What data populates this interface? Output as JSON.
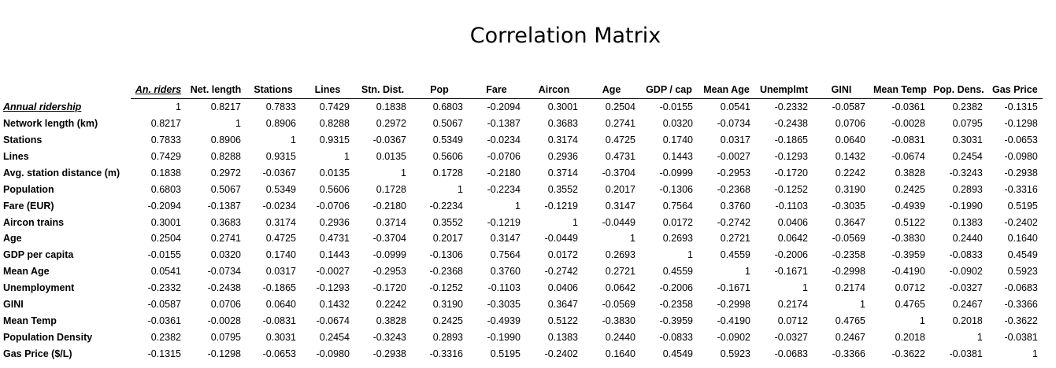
{
  "title": "Correlation Matrix",
  "col_headers": [
    "An. riders",
    "Net. length",
    "Stations",
    "Lines",
    "Stn. Dist.",
    "Pop",
    "Fare",
    "Aircon",
    "Age",
    "GDP / cap",
    "Mean Age",
    "Unemplmt",
    "GINI",
    "Mean Temp",
    "Pop. Dens.",
    "Gas Price"
  ],
  "highlight_col": 0,
  "highlight_row": 0,
  "rows": [
    {
      "label": "Annual ridership",
      "values": [
        "1",
        "0.8217",
        "0.7833",
        "0.7429",
        "0.1838",
        "0.6803",
        "-0.2094",
        "0.3001",
        "0.2504",
        "-0.0155",
        "0.0541",
        "-0.2332",
        "-0.0587",
        "-0.0361",
        "0.2382",
        "-0.1315"
      ]
    },
    {
      "label": "Network length (km)",
      "values": [
        "0.8217",
        "1",
        "0.8906",
        "0.8288",
        "0.2972",
        "0.5067",
        "-0.1387",
        "0.3683",
        "0.2741",
        "0.0320",
        "-0.0734",
        "-0.2438",
        "0.0706",
        "-0.0028",
        "0.0795",
        "-0.1298"
      ]
    },
    {
      "label": "Stations",
      "values": [
        "0.7833",
        "0.8906",
        "1",
        "0.9315",
        "-0.0367",
        "0.5349",
        "-0.0234",
        "0.3174",
        "0.4725",
        "0.1740",
        "0.0317",
        "-0.1865",
        "0.0640",
        "-0.0831",
        "0.3031",
        "-0.0653"
      ]
    },
    {
      "label": "Lines",
      "values": [
        "0.7429",
        "0.8288",
        "0.9315",
        "1",
        "0.0135",
        "0.5606",
        "-0.0706",
        "0.2936",
        "0.4731",
        "0.1443",
        "-0.0027",
        "-0.1293",
        "0.1432",
        "-0.0674",
        "0.2454",
        "-0.0980"
      ]
    },
    {
      "label": "Avg. station distance (m)",
      "values": [
        "0.1838",
        "0.2972",
        "-0.0367",
        "0.0135",
        "1",
        "0.1728",
        "-0.2180",
        "0.3714",
        "-0.3704",
        "-0.0999",
        "-0.2953",
        "-0.1720",
        "0.2242",
        "0.3828",
        "-0.3243",
        "-0.2938"
      ]
    },
    {
      "label": "Population",
      "values": [
        "0.6803",
        "0.5067",
        "0.5349",
        "0.5606",
        "0.1728",
        "1",
        "-0.2234",
        "0.3552",
        "0.2017",
        "-0.1306",
        "-0.2368",
        "-0.1252",
        "0.3190",
        "0.2425",
        "0.2893",
        "-0.3316"
      ]
    },
    {
      "label": "Fare (EUR)",
      "values": [
        "-0.2094",
        "-0.1387",
        "-0.0234",
        "-0.0706",
        "-0.2180",
        "-0.2234",
        "1",
        "-0.1219",
        "0.3147",
        "0.7564",
        "0.3760",
        "-0.1103",
        "-0.3035",
        "-0.4939",
        "-0.1990",
        "0.5195"
      ]
    },
    {
      "label": "Aircon trains",
      "values": [
        "0.3001",
        "0.3683",
        "0.3174",
        "0.2936",
        "0.3714",
        "0.3552",
        "-0.1219",
        "1",
        "-0.0449",
        "0.0172",
        "-0.2742",
        "0.0406",
        "0.3647",
        "0.5122",
        "0.1383",
        "-0.2402"
      ]
    },
    {
      "label": "Age",
      "values": [
        "0.2504",
        "0.2741",
        "0.4725",
        "0.4731",
        "-0.3704",
        "0.2017",
        "0.3147",
        "-0.0449",
        "1",
        "0.2693",
        "0.2721",
        "0.0642",
        "-0.0569",
        "-0.3830",
        "0.2440",
        "0.1640"
      ]
    },
    {
      "label": "GDP per capita",
      "values": [
        "-0.0155",
        "0.0320",
        "0.1740",
        "0.1443",
        "-0.0999",
        "-0.1306",
        "0.7564",
        "0.0172",
        "0.2693",
        "1",
        "0.4559",
        "-0.2006",
        "-0.2358",
        "-0.3959",
        "-0.0833",
        "0.4549"
      ]
    },
    {
      "label": "Mean Age",
      "values": [
        "0.0541",
        "-0.0734",
        "0.0317",
        "-0.0027",
        "-0.2953",
        "-0.2368",
        "0.3760",
        "-0.2742",
        "0.2721",
        "0.4559",
        "1",
        "-0.1671",
        "-0.2998",
        "-0.4190",
        "-0.0902",
        "0.5923"
      ]
    },
    {
      "label": "Unemployment",
      "values": [
        "-0.2332",
        "-0.2438",
        "-0.1865",
        "-0.1293",
        "-0.1720",
        "-0.1252",
        "-0.1103",
        "0.0406",
        "0.0642",
        "-0.2006",
        "-0.1671",
        "1",
        "0.2174",
        "0.0712",
        "-0.0327",
        "-0.0683"
      ]
    },
    {
      "label": "GINI",
      "values": [
        "-0.0587",
        "0.0706",
        "0.0640",
        "0.1432",
        "0.2242",
        "0.3190",
        "-0.3035",
        "0.3647",
        "-0.0569",
        "-0.2358",
        "-0.2998",
        "0.2174",
        "1",
        "0.4765",
        "0.2467",
        "-0.3366"
      ]
    },
    {
      "label": "Mean Temp",
      "values": [
        "-0.0361",
        "-0.0028",
        "-0.0831",
        "-0.0674",
        "0.3828",
        "0.2425",
        "-0.4939",
        "0.5122",
        "-0.3830",
        "-0.3959",
        "-0.4190",
        "0.0712",
        "0.4765",
        "1",
        "0.2018",
        "-0.3622"
      ]
    },
    {
      "label": "Population Density",
      "values": [
        "0.2382",
        "0.0795",
        "0.3031",
        "0.2454",
        "-0.3243",
        "0.2893",
        "-0.1990",
        "0.1383",
        "0.2440",
        "-0.0833",
        "-0.0902",
        "-0.0327",
        "0.2467",
        "0.2018",
        "1",
        "-0.0381"
      ]
    },
    {
      "label": "Gas Price ($/L)",
      "values": [
        "-0.1315",
        "-0.1298",
        "-0.0653",
        "-0.0980",
        "-0.2938",
        "-0.3316",
        "0.5195",
        "-0.2402",
        "0.1640",
        "0.4549",
        "0.5923",
        "-0.0683",
        "-0.3366",
        "-0.3622",
        "-0.0381",
        "1"
      ]
    }
  ]
}
